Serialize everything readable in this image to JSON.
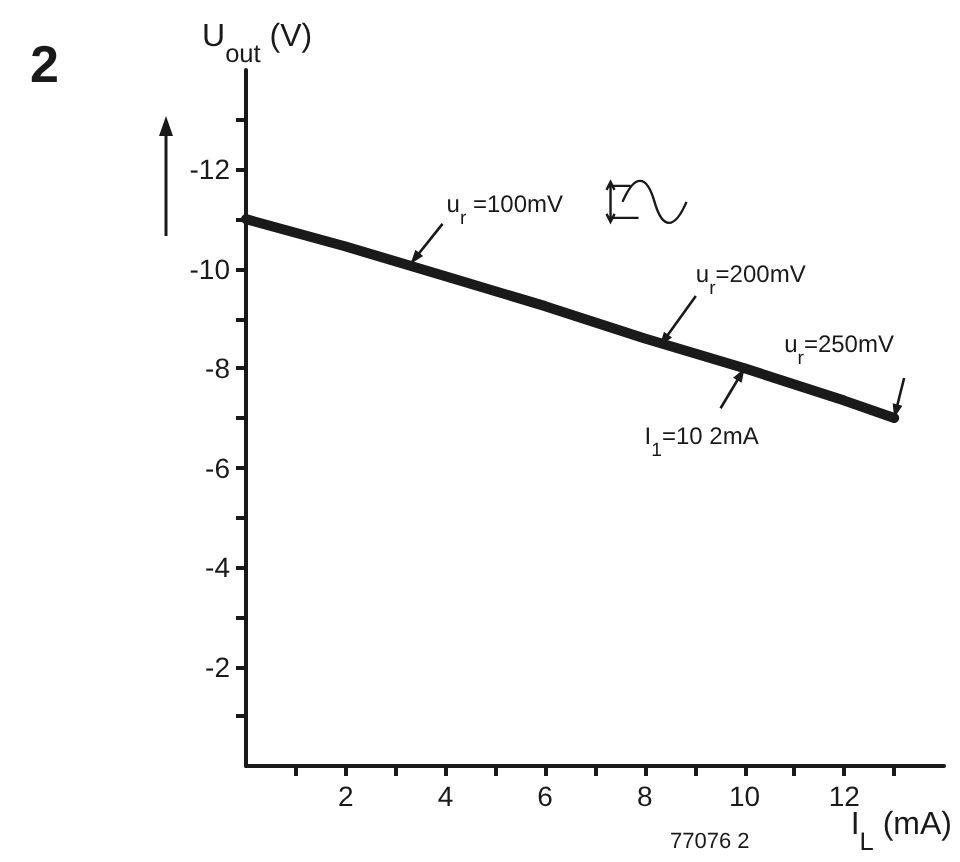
{
  "chart_data": {
    "type": "line",
    "title": "2",
    "xlabel": "I$_{L}$ (mA)",
    "ylabel": "U$_{out}$ (V)",
    "x": [
      0,
      2,
      4,
      6,
      8,
      10,
      12,
      13
    ],
    "series": [
      {
        "color": "#1a1a1a",
        "values": [
          -11,
          -10.45,
          -9.85,
          -9.25,
          -8.6,
          -8.0,
          -7.35,
          -7.0
        ]
      }
    ],
    "xlim": [
      0,
      14
    ],
    "xticks": [
      {
        "value": 1,
        "label": null
      },
      2,
      {
        "value": 3,
        "label": null
      },
      4,
      {
        "value": 5,
        "label": null
      },
      6,
      {
        "value": 7,
        "label": null
      },
      8,
      {
        "value": 9,
        "label": null
      },
      10,
      {
        "value": 11,
        "label": null
      },
      12,
      {
        "value": 13,
        "label": null
      }
    ],
    "ylim": [
      0,
      -14
    ],
    "yticks": [
      {
        "value": -1,
        "label": null
      },
      -2,
      {
        "value": -3,
        "label": null
      },
      -4,
      {
        "value": -5,
        "label": null
      },
      -6,
      {
        "value": -7,
        "label": null
      },
      -8,
      {
        "value": -9,
        "label": null
      },
      -10,
      {
        "value": -11,
        "label": null
      },
      -12,
      {
        "value": -13,
        "label": null
      }
    ],
    "annotations": [
      {
        "text": "u$_{r}$ =100mV",
        "x": 3.3,
        "y": -10.1
      },
      {
        "text": "u$_{r}$=200mV",
        "x": 8.3,
        "y": -8.45
      },
      {
        "text": "u$_{r}$=250mV",
        "x": 13,
        "y": -7.0
      },
      {
        "text": "I$_{1}$=10 2mA",
        "x": 10,
        "y": -8.0
      },
      "77076 2"
    ],
    "grid": false,
    "marker": "none",
    "line_style": "solid"
  }
}
